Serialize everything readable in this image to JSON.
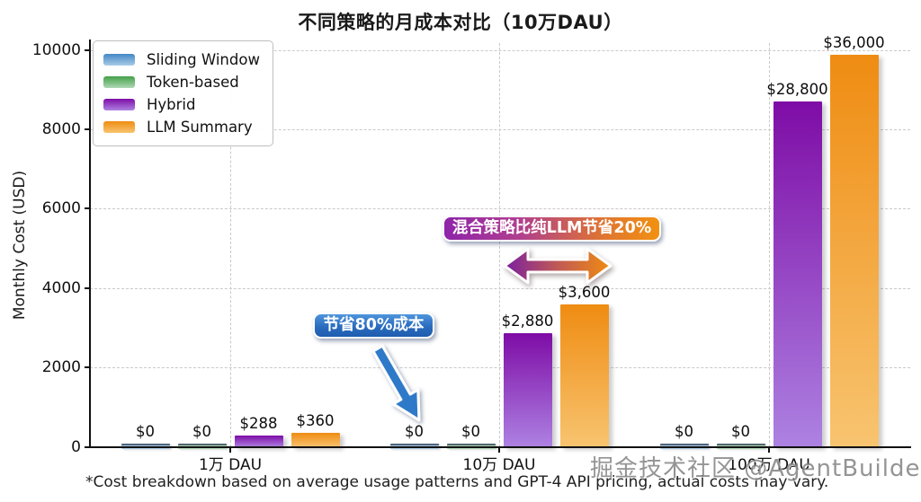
{
  "title": "不同策略的月成本对比（10万DAU）",
  "y_axis": {
    "label": "Monthly Cost (USD)"
  },
  "footnote": "*Cost breakdown based on average usage patterns and GPT-4 API pricing, actual costs may vary.",
  "watermark": "掘金技术社区 @AgentBuilder",
  "chart_data": {
    "type": "bar",
    "title": "不同策略的月成本对比（10万DAU）",
    "ylabel": "Monthly Cost (USD)",
    "ylim": [
      0,
      10000
    ],
    "yticks": [
      0,
      2000,
      4000,
      6000,
      8000,
      10000
    ],
    "categories": [
      "1万 DAU",
      "10万 DAU",
      "100万 DAU"
    ],
    "grid": "dashed horizontal and vertical",
    "legend_position": "upper left",
    "series": [
      {
        "name": "Sliding Window",
        "values": [
          0,
          0,
          0
        ],
        "value_labels": [
          "$0",
          "$0",
          "$0"
        ],
        "display_heights": [
          0,
          0,
          0
        ],
        "gradient": [
          "#4286c6",
          "#a9cce6"
        ]
      },
      {
        "name": "Token-based",
        "values": [
          0,
          0,
          0
        ],
        "value_labels": [
          "$0",
          "$0",
          "$0"
        ],
        "display_heights": [
          0,
          0,
          0
        ],
        "gradient": [
          "#43a047",
          "#aed8b4"
        ]
      },
      {
        "name": "Hybrid",
        "values": [
          288,
          2880,
          28800
        ],
        "value_labels": [
          "$288",
          "$2,880",
          "$28,800"
        ],
        "display_heights": [
          288,
          2880,
          8720
        ],
        "gradient": [
          "#7e0ca6",
          "#ad82e2"
        ]
      },
      {
        "name": "LLM Summary",
        "values": [
          360,
          3600,
          36000
        ],
        "value_labels": [
          "$360",
          "$3,600",
          "$36,000"
        ],
        "display_heights": [
          360,
          3600,
          9890
        ],
        "gradient": [
          "#ef8c12",
          "#f8c470"
        ]
      }
    ],
    "annotations": [
      {
        "id": "save80",
        "text": "节省80%成本",
        "style": "blue box with arrow to 10万 DAU $0 bars"
      },
      {
        "id": "hybrid-vs-llm",
        "text": "混合策略比纯LLM节省20%",
        "style": "purple-to-orange box with double arrow between Hybrid and LLM Summary bars"
      }
    ]
  }
}
